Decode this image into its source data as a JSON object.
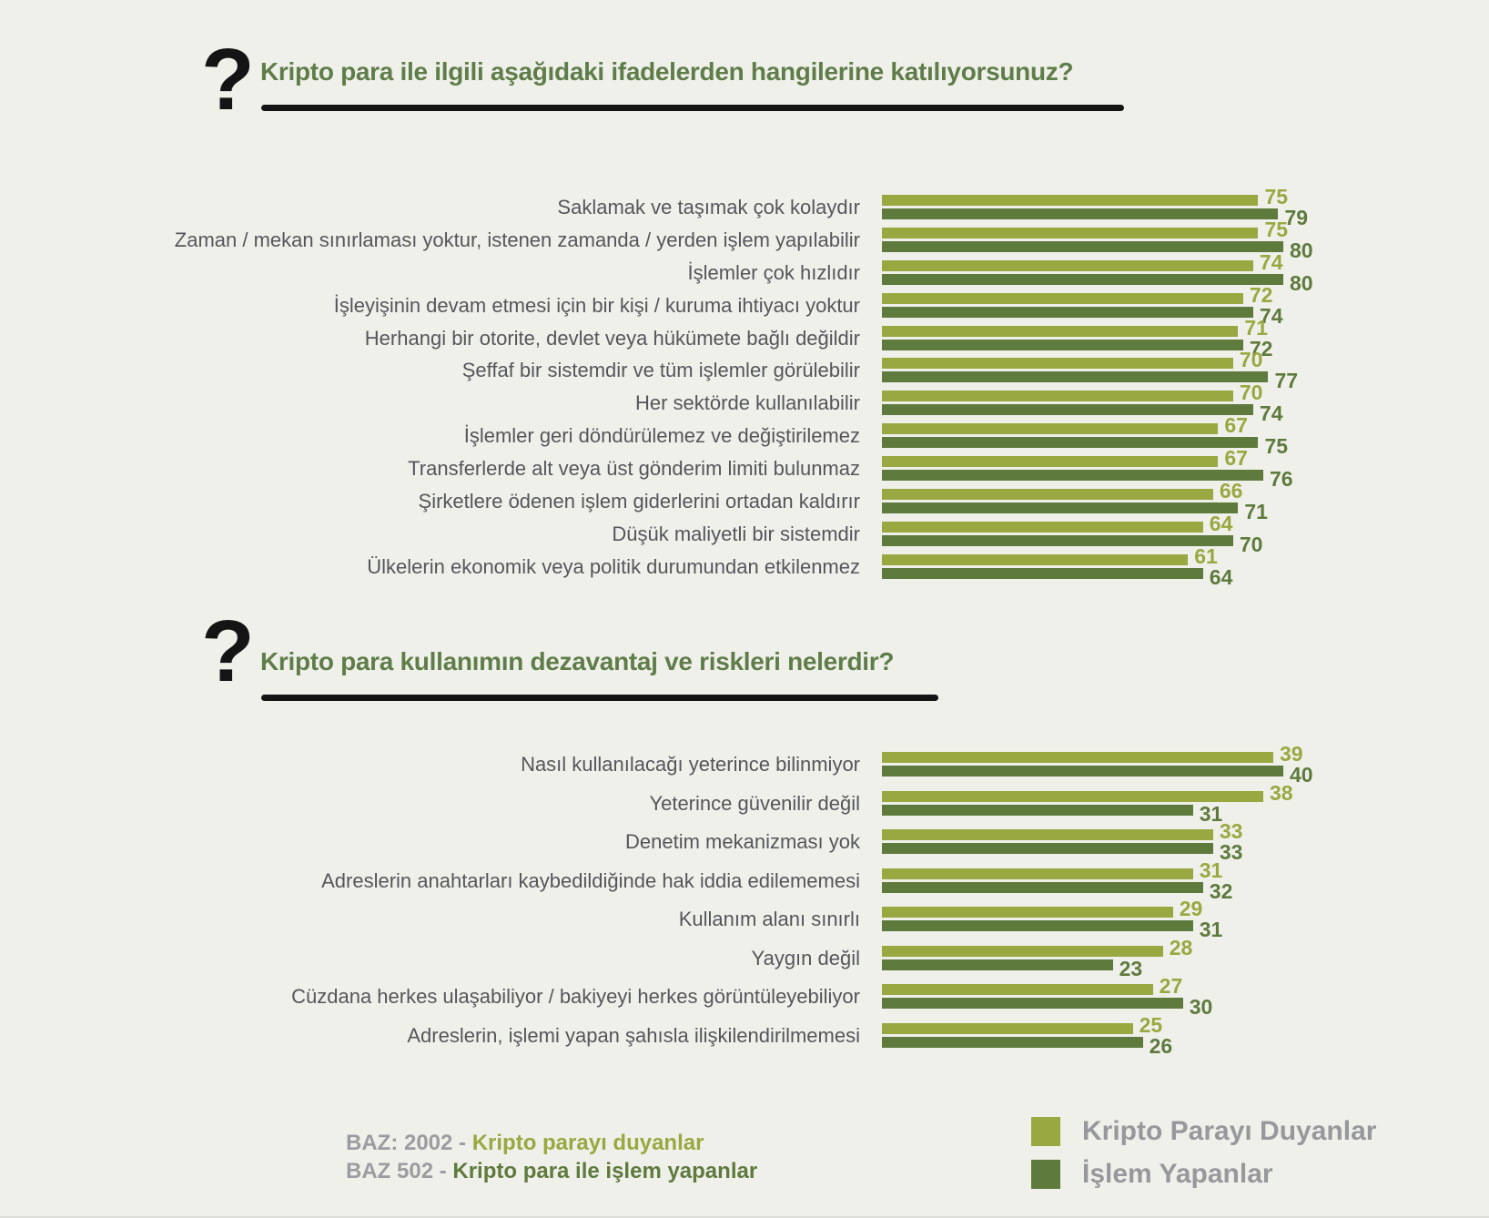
{
  "qmark": "?",
  "colors": {
    "background": "#f0f0eb",
    "duyanlar": "#99a840",
    "yapanlar": "#5e7a3d",
    "title": "#5f7d49",
    "label": "#55565a",
    "legend_text": "#97989b",
    "baz": "#9b9ca0",
    "underline": "#141414"
  },
  "chart_data": [
    {
      "type": "bar",
      "orientation": "horizontal",
      "title": "Kripto para ile ilgili aşağıdaki ifadelerden hangilerine katılıyorsunuz?",
      "categories": [
        "Saklamak ve taşımak çok kolaydır",
        "Zaman / mekan sınırlaması yoktur, istenen zamanda / yerden işlem yapılabilir",
        "İşlemler çok hızlıdır",
        "İşleyişinin devam etmesi için bir kişi / kuruma ihtiyacı yoktur",
        "Herhangi bir otorite, devlet veya hükümete bağlı değildir",
        "Şeffaf bir sistemdir ve tüm işlemler görülebilir",
        "Her sektörde kullanılabilir",
        "İşlemler geri döndürülemez ve değiştirilemez",
        "Transferlerde alt veya üst gönderim limiti bulunmaz",
        "Şirketlere ödenen işlem giderlerini ortadan kaldırır",
        "Düşük maliyetli bir sistemdir",
        "Ülkelerin ekonomik veya politik durumundan etkilenmez"
      ],
      "series": [
        {
          "name": "Kripto Parayı Duyanlar",
          "values": [
            75,
            75,
            74,
            72,
            71,
            70,
            70,
            67,
            67,
            66,
            64,
            61
          ]
        },
        {
          "name": "İşlem Yapanlar",
          "values": [
            79,
            80,
            80,
            74,
            72,
            77,
            74,
            75,
            76,
            71,
            70,
            64
          ]
        }
      ],
      "xlim": [
        0,
        80
      ],
      "value_labels": true,
      "grid": false,
      "unit": "%"
    },
    {
      "type": "bar",
      "orientation": "horizontal",
      "title": "Kripto para kullanımın dezavantaj ve riskleri nelerdir?",
      "categories": [
        "Nasıl kullanılacağı yeterince bilinmiyor",
        "Yeterince güvenilir değil",
        "Denetim mekanizması yok",
        "Adreslerin anahtarları kaybedildiğinde hak iddia edilememesi",
        "Kullanım alanı sınırlı",
        "Yaygın değil",
        "Cüzdana herkes ulaşabiliyor / bakiyeyi herkes görüntüleyebiliyor",
        "Adreslerin, işlemi yapan şahısla ilişkilendirilmemesi"
      ],
      "series": [
        {
          "name": "Kripto Parayı Duyanlar",
          "values": [
            39,
            38,
            33,
            31,
            29,
            28,
            27,
            25
          ]
        },
        {
          "name": "İşlem Yapanlar",
          "values": [
            40,
            31,
            33,
            32,
            31,
            23,
            30,
            26
          ]
        }
      ],
      "xlim": [
        0,
        40
      ],
      "value_labels": true,
      "grid": false,
      "unit": "%"
    }
  ],
  "legend": {
    "position": "bottom-right",
    "items": [
      {
        "label": "Kripto Parayı Duyanlar",
        "color": "#99a840"
      },
      {
        "label": "İşlem Yapanlar",
        "color": "#5e7a3d"
      }
    ]
  },
  "footer": {
    "lines": [
      {
        "prefix": "BAZ: 2002 - ",
        "text": "Kripto parayı duyanlar",
        "color": "#99a840"
      },
      {
        "prefix": "BAZ 502 - ",
        "text": "Kripto para ile işlem yapanlar",
        "color": "#5e7a3d"
      }
    ]
  }
}
